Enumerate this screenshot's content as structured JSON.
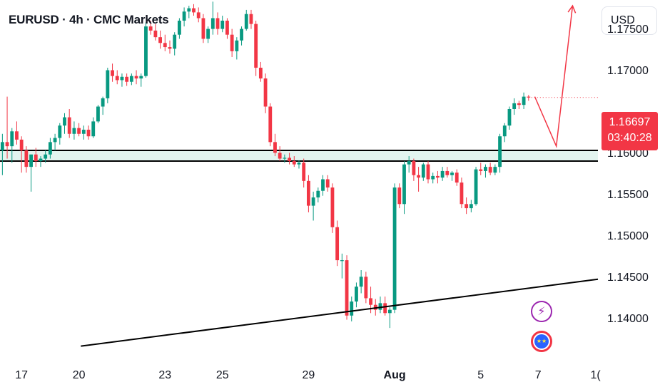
{
  "header": {
    "title": "EURUSD · 4h · CMC Markets",
    "currency_label": "USD"
  },
  "price_label": {
    "price": "1.16697",
    "countdown": "03:40:28",
    "color": "#f23645"
  },
  "events": [
    {
      "icon": "lightning-icon",
      "color": "#9c27b0"
    },
    {
      "icon": "eu-flag-icon",
      "color": "#f23645"
    }
  ],
  "colors": {
    "up": "#089981",
    "down": "#f23645",
    "zone_fill": "#e3f4ef",
    "projection": "#f23645",
    "trendline": "#000000"
  },
  "chart_data": {
    "type": "candlestick",
    "symbol": "EURUSD",
    "interval": "4h",
    "y_ticks": [
      "1.17500",
      "1.17000",
      "1.16000",
      "1.15500",
      "1.15000",
      "1.14500",
      "1.14000"
    ],
    "y_tick_values": [
      1.175,
      1.17,
      1.16,
      1.155,
      1.15,
      1.145,
      1.14
    ],
    "x_ticks": [
      {
        "label": "17",
        "bar": 4
      },
      {
        "label": "20",
        "bar": 16
      },
      {
        "label": "23",
        "bar": 34
      },
      {
        "label": "25",
        "bar": 46
      },
      {
        "label": "29",
        "bar": 64
      },
      {
        "label": "Aug",
        "bar": 82,
        "bold": true
      },
      {
        "label": "5",
        "bar": 100
      },
      {
        "label": "7",
        "bar": 112
      },
      {
        "label": "1(",
        "bar": 124
      }
    ],
    "ylim": [
      1.1347,
      1.1787
    ],
    "bars_visible": 125,
    "candles": [
      [
        1.1605,
        1.1625,
        1.1575,
        1.1615
      ],
      [
        1.1615,
        1.167,
        1.1595,
        1.161
      ],
      [
        1.161,
        1.1632,
        1.159,
        1.1628
      ],
      [
        1.1628,
        1.164,
        1.1612,
        1.1618
      ],
      [
        1.1618,
        1.1622,
        1.1578,
        1.1605
      ],
      [
        1.1605,
        1.161,
        1.1578,
        1.1585
      ],
      [
        1.1585,
        1.16,
        1.1555,
        1.16
      ],
      [
        1.16,
        1.1608,
        1.1585,
        1.1592
      ],
      [
        1.1592,
        1.1598,
        1.1585,
        1.1595
      ],
      [
        1.1595,
        1.1605,
        1.159,
        1.16
      ],
      [
        1.16,
        1.162,
        1.1595,
        1.1615
      ],
      [
        1.1615,
        1.1625,
        1.1605,
        1.162
      ],
      [
        1.162,
        1.1638,
        1.1612,
        1.1635
      ],
      [
        1.1635,
        1.165,
        1.1625,
        1.1645
      ],
      [
        1.1645,
        1.1655,
        1.162,
        1.1625
      ],
      [
        1.1625,
        1.164,
        1.1618,
        1.1632
      ],
      [
        1.1632,
        1.1638,
        1.1622,
        1.1625
      ],
      [
        1.1625,
        1.1635,
        1.1618,
        1.163
      ],
      [
        1.163,
        1.1635,
        1.1618,
        1.1622
      ],
      [
        1.1622,
        1.1645,
        1.162,
        1.164
      ],
      [
        1.164,
        1.166,
        1.1638,
        1.1658
      ],
      [
        1.1658,
        1.167,
        1.1648,
        1.1668
      ],
      [
        1.1668,
        1.1705,
        1.1662,
        1.1702
      ],
      [
        1.1702,
        1.171,
        1.1688,
        1.1695
      ],
      [
        1.1695,
        1.1702,
        1.1685,
        1.169
      ],
      [
        1.169,
        1.1698,
        1.1682,
        1.1694
      ],
      [
        1.1694,
        1.1698,
        1.1683,
        1.1688
      ],
      [
        1.1688,
        1.1698,
        1.1684,
        1.1695
      ],
      [
        1.1695,
        1.1702,
        1.1685,
        1.1692
      ],
      [
        1.1692,
        1.1698,
        1.1682,
        1.1695
      ],
      [
        1.1695,
        1.176,
        1.1693,
        1.1755
      ],
      [
        1.1755,
        1.1762,
        1.1745,
        1.175
      ],
      [
        1.175,
        1.1758,
        1.1738,
        1.1742
      ],
      [
        1.1742,
        1.175,
        1.1728,
        1.1735
      ],
      [
        1.1735,
        1.1745,
        1.1725,
        1.173
      ],
      [
        1.173,
        1.1738,
        1.1722,
        1.1728
      ],
      [
        1.1728,
        1.1748,
        1.172,
        1.1745
      ],
      [
        1.1745,
        1.1765,
        1.174,
        1.1762
      ],
      [
        1.1762,
        1.1778,
        1.1755,
        1.1773
      ],
      [
        1.1773,
        1.178,
        1.1765,
        1.1777
      ],
      [
        1.1777,
        1.1782,
        1.1768,
        1.1772
      ],
      [
        1.1772,
        1.1778,
        1.176,
        1.1765
      ],
      [
        1.1765,
        1.177,
        1.1735,
        1.174
      ],
      [
        1.174,
        1.1755,
        1.1735,
        1.1752
      ],
      [
        1.1752,
        1.1785,
        1.1745,
        1.1765
      ],
      [
        1.1765,
        1.1772,
        1.1745,
        1.1752
      ],
      [
        1.1752,
        1.1768,
        1.1748,
        1.1762
      ],
      [
        1.1762,
        1.1765,
        1.174,
        1.1745
      ],
      [
        1.1745,
        1.1752,
        1.1718,
        1.1725
      ],
      [
        1.1725,
        1.1742,
        1.1715,
        1.1738
      ],
      [
        1.1738,
        1.1755,
        1.1732,
        1.1752
      ],
      [
        1.1752,
        1.1775,
        1.175,
        1.177
      ],
      [
        1.177,
        1.1775,
        1.1752,
        1.1758
      ],
      [
        1.1758,
        1.1762,
        1.1695,
        1.1705
      ],
      [
        1.1705,
        1.1712,
        1.1688,
        1.1692
      ],
      [
        1.1692,
        1.1698,
        1.165,
        1.1658
      ],
      [
        1.1658,
        1.1662,
        1.161,
        1.1615
      ],
      [
        1.1615,
        1.1625,
        1.1598,
        1.1602
      ],
      [
        1.1602,
        1.161,
        1.1592,
        1.1595
      ],
      [
        1.1595,
        1.16,
        1.159,
        1.1596
      ],
      [
        1.1596,
        1.1602,
        1.1588,
        1.1592
      ],
      [
        1.1592,
        1.1598,
        1.1585,
        1.1588
      ],
      [
        1.1588,
        1.1593,
        1.1583,
        1.159
      ],
      [
        1.159,
        1.1595,
        1.156,
        1.1568
      ],
      [
        1.1568,
        1.1575,
        1.153,
        1.1538
      ],
      [
        1.1538,
        1.1555,
        1.152,
        1.1548
      ],
      [
        1.1548,
        1.156,
        1.1542,
        1.1556
      ],
      [
        1.1556,
        1.1575,
        1.155,
        1.157
      ],
      [
        1.157,
        1.1575,
        1.1555,
        1.156
      ],
      [
        1.156,
        1.1565,
        1.1505,
        1.1512
      ],
      [
        1.1512,
        1.152,
        1.1465,
        1.1472
      ],
      [
        1.1472,
        1.148,
        1.145,
        1.1472
      ],
      [
        1.1472,
        1.1478,
        1.14,
        1.1405
      ],
      [
        1.1405,
        1.1428,
        1.1398,
        1.1422
      ],
      [
        1.1422,
        1.1445,
        1.1415,
        1.144
      ],
      [
        1.144,
        1.146,
        1.1432,
        1.1452
      ],
      [
        1.1452,
        1.1458,
        1.142,
        1.1426
      ],
      [
        1.1426,
        1.144,
        1.1408,
        1.1418
      ],
      [
        1.1418,
        1.1425,
        1.1405,
        1.1412
      ],
      [
        1.1412,
        1.1428,
        1.1408,
        1.142
      ],
      [
        1.142,
        1.1428,
        1.1405,
        1.1408
      ],
      [
        1.1408,
        1.1415,
        1.139,
        1.1412
      ],
      [
        1.1412,
        1.1565,
        1.1408,
        1.156
      ],
      [
        1.156,
        1.1565,
        1.1535,
        1.154
      ],
      [
        1.154,
        1.1592,
        1.1528,
        1.1588
      ],
      [
        1.1588,
        1.1598,
        1.1578,
        1.1592
      ],
      [
        1.1592,
        1.1595,
        1.1568,
        1.1575
      ],
      [
        1.1575,
        1.1585,
        1.1555,
        1.1572
      ],
      [
        1.1572,
        1.159,
        1.1568,
        1.1588
      ],
      [
        1.1588,
        1.1592,
        1.1565,
        1.157
      ],
      [
        1.157,
        1.1578,
        1.1565,
        1.1574
      ],
      [
        1.1574,
        1.158,
        1.1565,
        1.1572
      ],
      [
        1.1572,
        1.1585,
        1.1568,
        1.158
      ],
      [
        1.158,
        1.1585,
        1.1572,
        1.1575
      ],
      [
        1.1575,
        1.158,
        1.1568,
        1.1578
      ],
      [
        1.1578,
        1.1582,
        1.1562,
        1.1566
      ],
      [
        1.1566,
        1.1572,
        1.1535,
        1.154
      ],
      [
        1.154,
        1.1548,
        1.1528,
        1.1535
      ],
      [
        1.1535,
        1.1545,
        1.153,
        1.154
      ],
      [
        1.154,
        1.1585,
        1.1538,
        1.1582
      ],
      [
        1.1582,
        1.159,
        1.1575,
        1.158
      ],
      [
        1.158,
        1.1588,
        1.1572,
        1.1585
      ],
      [
        1.1585,
        1.159,
        1.1575,
        1.1578
      ],
      [
        1.1578,
        1.1588,
        1.1575,
        1.1585
      ],
      [
        1.1585,
        1.1625,
        1.1578,
        1.1622
      ],
      [
        1.1622,
        1.1638,
        1.1615,
        1.1635
      ],
      [
        1.1635,
        1.1658,
        1.163,
        1.1655
      ],
      [
        1.1655,
        1.1668,
        1.1648,
        1.1662
      ],
      [
        1.1662,
        1.1665,
        1.1655,
        1.166
      ],
      [
        1.166,
        1.1675,
        1.1655,
        1.167
      ],
      [
        1.167,
        1.1672,
        1.1665,
        1.1669
      ]
    ],
    "zone": {
      "top": 1.1605,
      "bottom": 1.1592
    },
    "trendline": {
      "from": {
        "bar": 16.4,
        "price": 1.1368
      },
      "to": {
        "bar": 124.5,
        "price": 1.1449
      }
    },
    "projection": [
      {
        "bar": 111.3,
        "price": 1.167
      },
      {
        "bar": 115.8,
        "price": 1.161
      },
      {
        "bar": 119.2,
        "price": 1.178
      }
    ]
  }
}
